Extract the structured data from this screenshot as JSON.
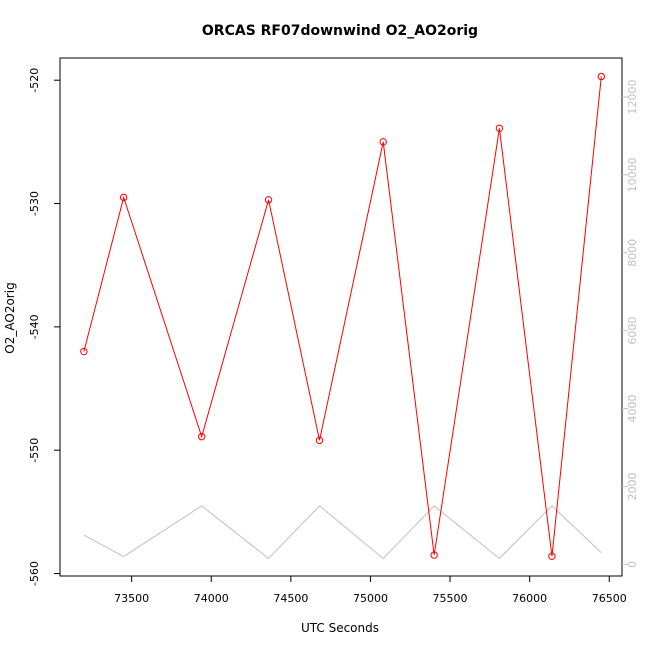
{
  "chart_data": {
    "type": "line",
    "title": "ORCAS RF07downwind O2_AO2orig",
    "xlabel": "UTC Seconds",
    "ylabel": "O2_AO2orig",
    "xlim": [
      73050,
      76580
    ],
    "ylim": [
      -560.2,
      -518.2
    ],
    "x_ticks": [
      73500,
      74000,
      74500,
      75000,
      75500,
      76000,
      76500
    ],
    "y_ticks": [
      -520,
      -530,
      -540,
      -550,
      -560
    ],
    "y2lim": [
      -300,
      13000
    ],
    "y2_ticks": [
      0,
      2000,
      4000,
      6000,
      8000,
      10000,
      12000
    ],
    "grid": false,
    "colors": {
      "primary": "#ff0000",
      "secondary": "#c0c0c0",
      "axis": "#000000"
    },
    "series": [
      {
        "axis": "left",
        "line_color": "#ff0000",
        "marker": "open-circle",
        "x": [
          73200,
          73450,
          73940,
          74360,
          74680,
          75080,
          75400,
          75810,
          76140,
          76450
        ],
        "y": [
          -542.0,
          -529.5,
          -548.9,
          -529.7,
          -549.2,
          -525.0,
          -558.5,
          -523.9,
          -558.6,
          -519.7
        ]
      },
      {
        "axis": "right",
        "line_color": "#c0c0c0",
        "marker": "none",
        "x": [
          73200,
          73450,
          73940,
          74360,
          74680,
          75080,
          75400,
          75810,
          76140,
          76450
        ],
        "y": [
          750,
          200,
          1500,
          150,
          1500,
          150,
          1500,
          150,
          1500,
          300
        ]
      }
    ]
  }
}
